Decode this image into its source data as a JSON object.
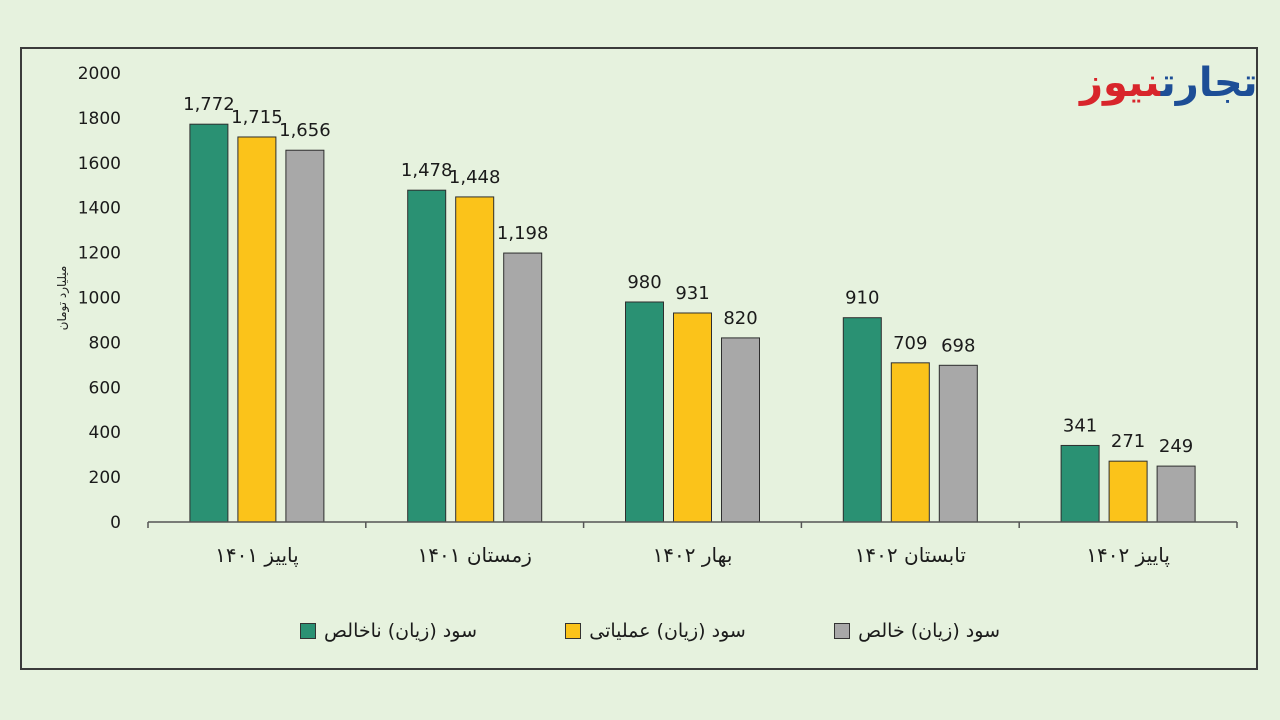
{
  "logo": {
    "part1": "تجارت",
    "part2": "نیوز"
  },
  "colors": {
    "gross": "#2a9173",
    "operating": "#fbc31a",
    "net": "#a8a8a8",
    "background": "#e6f2de"
  },
  "chart_data": {
    "type": "bar",
    "ylabel": "میلیارد تومان",
    "ylim": [
      0,
      2000
    ],
    "yticks": [
      "0",
      "200",
      "400",
      "600",
      "800",
      "1000",
      "1200",
      "1400",
      "1600",
      "1800",
      "2000"
    ],
    "categories": [
      "پاییز ۱۴۰۱",
      "زمستان ۱۴۰۱",
      "بهار ۱۴۰۲",
      "تابستان ۱۴۰۲",
      "پاییز ۱۴۰۲"
    ],
    "series": [
      {
        "name": "سود (زیان) ناخالص",
        "values": [
          1772,
          1478,
          980,
          910,
          341
        ],
        "labels": [
          "1,772",
          "1,478",
          "980",
          "910",
          "341"
        ]
      },
      {
        "name": "سود (زیان) عملیاتی",
        "values": [
          1715,
          1448,
          931,
          709,
          271
        ],
        "labels": [
          "1,715",
          "1,448",
          "931",
          "709",
          "271"
        ]
      },
      {
        "name": "سود (زیان) خالص",
        "values": [
          1656,
          1198,
          820,
          698,
          249
        ],
        "labels": [
          "1,656",
          "1,198",
          "820",
          "698",
          "249"
        ]
      }
    ],
    "grid": false,
    "legend": "bottom"
  }
}
